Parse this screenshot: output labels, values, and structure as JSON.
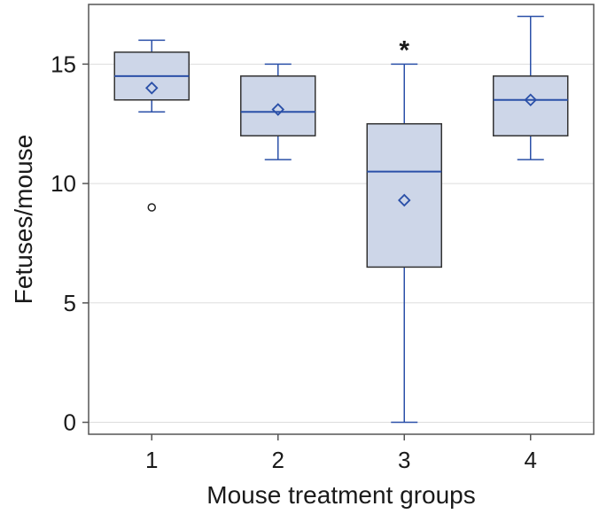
{
  "chart_data": {
    "type": "boxplot",
    "title": "",
    "xlabel": "Mouse treatment groups",
    "ylabel": "Fetuses/mouse",
    "ylim": [
      -0.5,
      17.5
    ],
    "yticks": [
      0,
      5,
      10,
      15
    ],
    "grid": true,
    "colors": {
      "box_fill": "#cdd6e8",
      "box_edge": "#333333",
      "median": "#2b50a8",
      "whisker": "#2b50a8",
      "mean_marker": "#2b50a8",
      "outlier": "#222222",
      "grid": "#dddddd"
    },
    "categories": [
      "1",
      "2",
      "3",
      "4"
    ],
    "groups": [
      {
        "label": "1",
        "min": 13,
        "q1": 13.5,
        "median": 14.5,
        "q3": 15.5,
        "max": 16,
        "mean": 14,
        "outliers": [
          9
        ],
        "annotation": ""
      },
      {
        "label": "2",
        "min": 11,
        "q1": 12,
        "median": 13,
        "q3": 14.5,
        "max": 15,
        "mean": 13.1,
        "outliers": [],
        "annotation": ""
      },
      {
        "label": "3",
        "min": 0,
        "q1": 6.5,
        "median": 10.5,
        "q3": 12.5,
        "max": 15,
        "mean": 9.3,
        "outliers": [],
        "annotation": "*"
      },
      {
        "label": "4",
        "min": 11,
        "q1": 12,
        "median": 13.5,
        "q3": 14.5,
        "max": 17,
        "mean": 13.5,
        "outliers": [],
        "annotation": ""
      }
    ]
  }
}
